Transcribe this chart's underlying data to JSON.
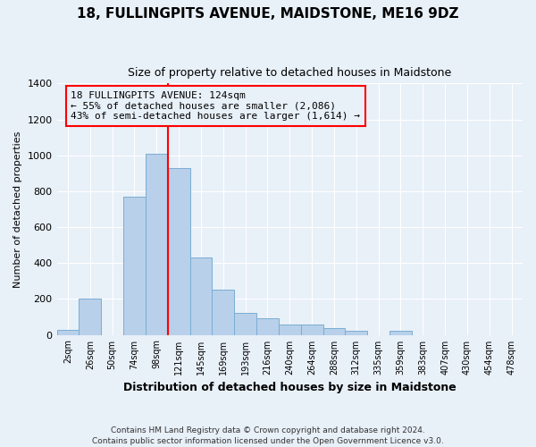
{
  "title": "18, FULLINGPITS AVENUE, MAIDSTONE, ME16 9DZ",
  "subtitle": "Size of property relative to detached houses in Maidstone",
  "xlabel": "Distribution of detached houses by size in Maidstone",
  "ylabel": "Number of detached properties",
  "categories": [
    "2sqm",
    "26sqm",
    "50sqm",
    "74sqm",
    "98sqm",
    "121sqm",
    "145sqm",
    "169sqm",
    "193sqm",
    "216sqm",
    "240sqm",
    "264sqm",
    "288sqm",
    "312sqm",
    "335sqm",
    "359sqm",
    "383sqm",
    "407sqm",
    "430sqm",
    "454sqm",
    "478sqm"
  ],
  "values": [
    30,
    200,
    0,
    770,
    1010,
    930,
    430,
    250,
    120,
    90,
    60,
    60,
    40,
    25,
    0,
    25,
    0,
    0,
    0,
    0,
    0
  ],
  "bar_color": "#b8d0ea",
  "bar_edge_color": "#7aadd4",
  "vline_x": 4.5,
  "vline_color": "red",
  "annotation_lines": [
    "18 FULLINGPITS AVENUE: 124sqm",
    "← 55% of detached houses are smaller (2,086)",
    "43% of semi-detached houses are larger (1,614) →"
  ],
  "annotation_box_color": "red",
  "ylim": [
    0,
    1400
  ],
  "yticks": [
    0,
    200,
    400,
    600,
    800,
    1000,
    1200,
    1400
  ],
  "footer1": "Contains HM Land Registry data © Crown copyright and database right 2024.",
  "footer2": "Contains public sector information licensed under the Open Government Licence v3.0.",
  "bg_color": "#e8f0f8",
  "grid_color": "#ffffff",
  "title_fontsize": 11,
  "subtitle_fontsize": 9,
  "ylabel_fontsize": 8,
  "xlabel_fontsize": 9
}
